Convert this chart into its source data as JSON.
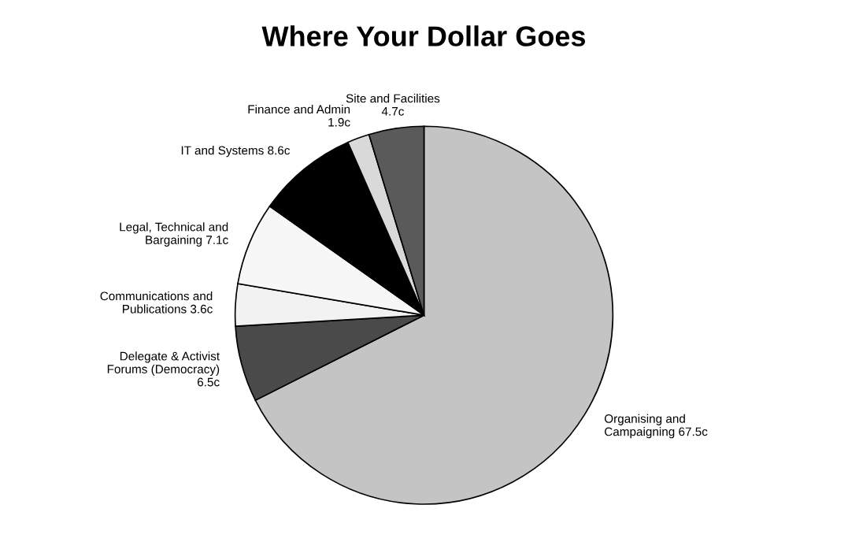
{
  "chart_data": {
    "type": "pie",
    "title": "Where Your Dollar Goes",
    "categories": [
      "Organising and\nCampaigning",
      "Delegate & Activist\nForums (Democracy)\n",
      "Communications and\nPublications",
      "Legal, Technical and\nBargaining",
      "IT and Systems",
      "Finance and Admin\n",
      "Site and Facilities\n"
    ],
    "values": [
      67.5,
      6.5,
      3.6,
      7.1,
      8.6,
      1.9,
      4.7
    ],
    "value_labels": [
      "67.5c",
      "6.5c",
      "3.6c",
      "7.1c",
      "8.6c",
      "1.9c",
      "4.7c"
    ],
    "colors": [
      "#c4c4c4",
      "#4a4a4a",
      "#f2f2f2",
      "#f7f7f7",
      "#000000",
      "#d9d9d9",
      "#5a5a5a"
    ],
    "legend": false
  }
}
